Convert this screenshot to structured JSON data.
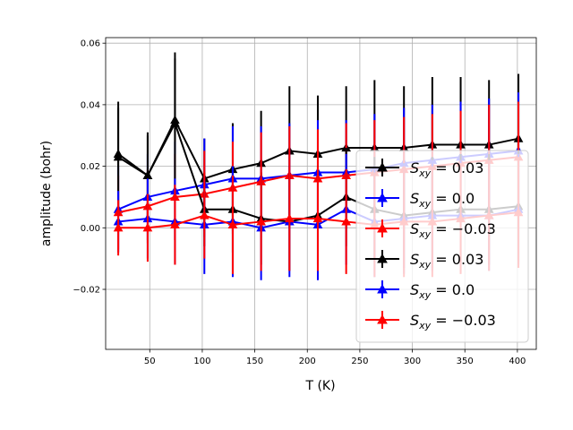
{
  "chart_data": {
    "type": "line",
    "title": "",
    "xlabel": "T (K)",
    "ylabel": "amplitude (bohr)",
    "xlim": [
      8,
      418
    ],
    "ylim": [
      -0.0395,
      0.0618
    ],
    "xticks": [
      50,
      100,
      150,
      200,
      250,
      300,
      350,
      400
    ],
    "xtick_labels": [
      "50",
      "100",
      "150",
      "200",
      "250",
      "300",
      "350",
      "400"
    ],
    "yticks": [
      -0.02,
      0.0,
      0.02,
      0.04,
      0.06
    ],
    "ytick_labels": [
      "−0.02",
      "0.00",
      "0.02",
      "0.04",
      "0.06"
    ],
    "grid": true,
    "legend_position": "lower-right",
    "x": [
      20,
      48,
      74,
      102,
      129,
      156,
      183,
      210,
      237,
      264,
      292,
      319,
      346,
      373,
      401
    ],
    "series": [
      {
        "label_main": "S",
        "label_sub": "xy",
        "label_value": " = 0.03",
        "color": "#000000",
        "marker": "triangle-up",
        "values": [
          0.024,
          0.017,
          0.035,
          0.016,
          0.019,
          0.021,
          0.025,
          0.024,
          0.026,
          0.026,
          0.026,
          0.027,
          0.027,
          0.027,
          0.029
        ],
        "errors": [
          0.017,
          0.013,
          0.022,
          0.013,
          0.015,
          0.017,
          0.021,
          0.019,
          0.02,
          0.022,
          0.02,
          0.022,
          0.022,
          0.021,
          0.021
        ]
      },
      {
        "label_main": "S",
        "label_sub": "xy",
        "label_value": " = 0.0",
        "color": "#0000ff",
        "marker": "triangle-up",
        "values": [
          0.006,
          0.01,
          0.012,
          0.014,
          0.016,
          0.016,
          0.017,
          0.018,
          0.018,
          0.019,
          0.021,
          0.022,
          0.023,
          0.024,
          0.025
        ],
        "errors": [
          0.014,
          0.014,
          0.016,
          0.015,
          0.017,
          0.017,
          0.017,
          0.017,
          0.017,
          0.018,
          0.018,
          0.018,
          0.018,
          0.018,
          0.019
        ]
      },
      {
        "label_main": "S",
        "label_sub": "xy",
        "label_value": " = −0.03",
        "color": "#ff0000",
        "marker": "triangle-up",
        "values": [
          0.005,
          0.007,
          0.01,
          0.011,
          0.013,
          0.015,
          0.017,
          0.016,
          0.017,
          0.018,
          0.019,
          0.02,
          0.021,
          0.022,
          0.023
        ],
        "errors": [
          0.012,
          0.012,
          0.014,
          0.014,
          0.015,
          0.016,
          0.016,
          0.016,
          0.017,
          0.017,
          0.017,
          0.017,
          0.017,
          0.018,
          0.018
        ]
      },
      {
        "label_main": "S",
        "label_sub": "xy",
        "label_value": " = 0.03",
        "color": "#000000",
        "marker": "triangle-up",
        "values": [
          0.023,
          0.017,
          0.034,
          0.006,
          0.006,
          0.003,
          0.002,
          0.004,
          0.01,
          0.006,
          0.004,
          0.005,
          0.006,
          0.006,
          0.007
        ],
        "errors": [
          0.016,
          0.014,
          0.021,
          0.012,
          0.014,
          0.015,
          0.016,
          0.016,
          0.016,
          0.017,
          0.017,
          0.018,
          0.018,
          0.018,
          0.018
        ]
      },
      {
        "label_main": "S",
        "label_sub": "xy",
        "label_value": " = 0.0",
        "color": "#0000ff",
        "marker": "triangle-up",
        "values": [
          0.002,
          0.003,
          0.002,
          0.001,
          0.002,
          0.0,
          0.002,
          0.001,
          0.006,
          0.002,
          0.003,
          0.004,
          0.004,
          0.004,
          0.006
        ],
        "errors": [
          0.01,
          0.013,
          0.014,
          0.016,
          0.018,
          0.017,
          0.018,
          0.018,
          0.018,
          0.018,
          0.018,
          0.018,
          0.018,
          0.018,
          0.018
        ]
      },
      {
        "label_main": "S",
        "label_sub": "xy",
        "label_value": " = −0.03",
        "color": "#ff0000",
        "marker": "triangle-up",
        "values": [
          0.0,
          0.0,
          0.001,
          0.004,
          0.001,
          0.002,
          0.003,
          0.003,
          0.002,
          0.001,
          0.002,
          0.002,
          0.003,
          0.004,
          0.005
        ],
        "errors": [
          0.009,
          0.011,
          0.013,
          0.014,
          0.016,
          0.016,
          0.017,
          0.017,
          0.017,
          0.017,
          0.018,
          0.018,
          0.018,
          0.018,
          0.018
        ]
      }
    ]
  }
}
